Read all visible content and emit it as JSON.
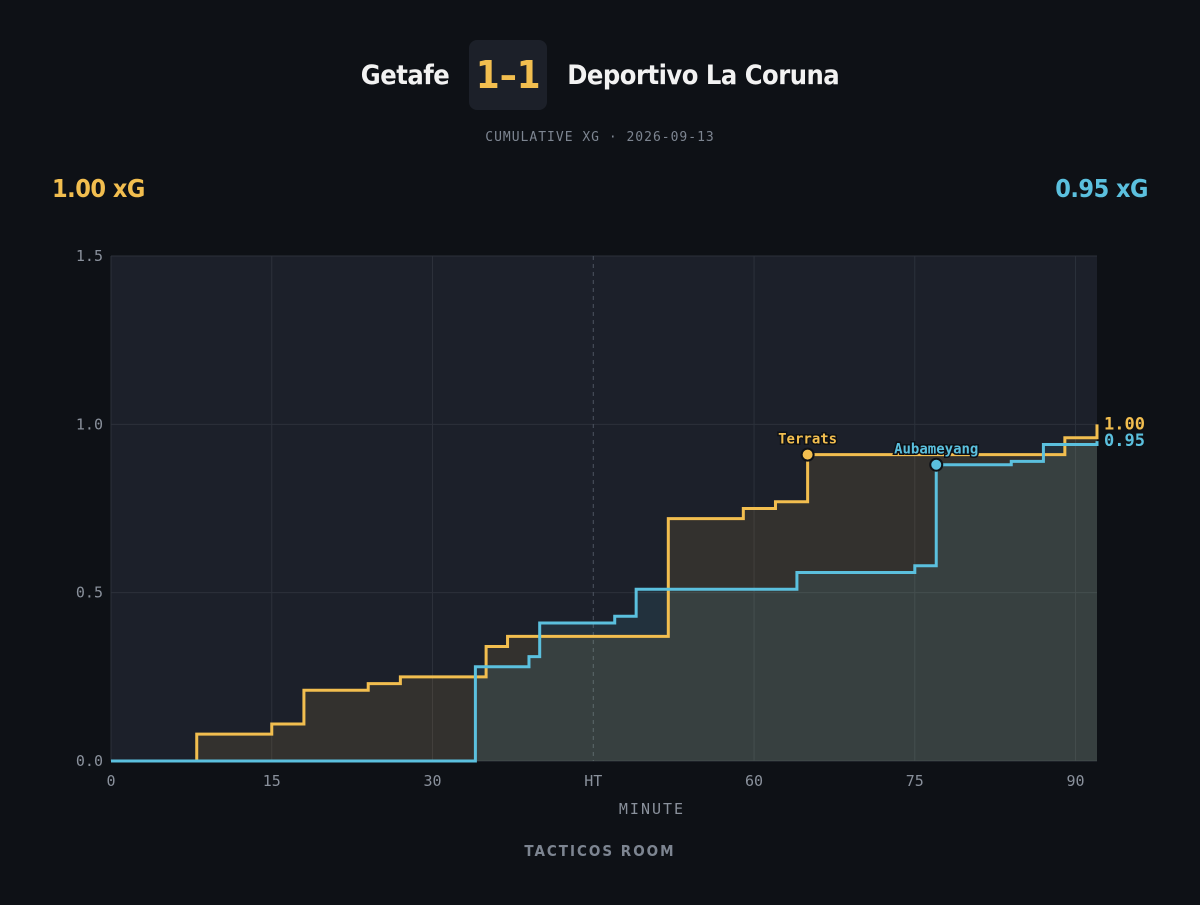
{
  "match": {
    "home_team": "Getafe",
    "away_team": "Deportivo La Coruna",
    "score": "1–1",
    "subtitle": "CUMULATIVE XG · 2026-09-13",
    "home_xg_total": "1.00 xG",
    "away_xg_total": "0.95 xG"
  },
  "footer": {
    "brand": "TACTICOS ROOM"
  },
  "colors": {
    "background": "#0e1116",
    "plot_background": "#1c202a",
    "home": "#f2be4f",
    "away": "#5bc0de",
    "grid": "#2c313b",
    "tick_text": "#8a919c"
  },
  "chart_data": {
    "type": "line",
    "step": true,
    "xlabel": "MINUTE",
    "ylabel": "",
    "xlim": [
      0,
      92
    ],
    "ylim": [
      0,
      1.5
    ],
    "x_ticks": [
      0,
      15,
      30,
      45,
      60,
      75,
      90
    ],
    "x_tick_labels": [
      "0",
      "15",
      "30",
      "HT",
      "60",
      "75",
      "90"
    ],
    "y_ticks": [
      0,
      0.5,
      1,
      1.5
    ],
    "y_tick_labels": [
      "0.0",
      "0.5",
      "1.0",
      "1.5"
    ],
    "halftime_line": 45,
    "grid": true,
    "series": [
      {
        "name": "Getafe",
        "color": "#f2be4f",
        "end_label": "1.00",
        "steps": [
          [
            0,
            0
          ],
          [
            8,
            0.08
          ],
          [
            15,
            0.11
          ],
          [
            18,
            0.21
          ],
          [
            24,
            0.23
          ],
          [
            27,
            0.25
          ],
          [
            35,
            0.34
          ],
          [
            37,
            0.37
          ],
          [
            52,
            0.72
          ],
          [
            59,
            0.75
          ],
          [
            62,
            0.77
          ],
          [
            65,
            0.91
          ],
          [
            89,
            0.96
          ],
          [
            92,
            1.0
          ]
        ],
        "goals": [
          {
            "minute": 65,
            "xg": 0.91,
            "player": "Terrats"
          }
        ]
      },
      {
        "name": "Deportivo La Coruna",
        "color": "#5bc0de",
        "end_label": "0.95",
        "steps": [
          [
            0,
            0
          ],
          [
            34,
            0.28
          ],
          [
            39,
            0.31
          ],
          [
            40,
            0.41
          ],
          [
            47,
            0.43
          ],
          [
            49,
            0.51
          ],
          [
            64,
            0.56
          ],
          [
            75,
            0.58
          ],
          [
            77,
            0.88
          ],
          [
            84,
            0.89
          ],
          [
            87,
            0.94
          ],
          [
            92,
            0.95
          ]
        ],
        "goals": [
          {
            "minute": 77,
            "xg": 0.88,
            "player": "Aubameyang"
          }
        ]
      }
    ]
  }
}
